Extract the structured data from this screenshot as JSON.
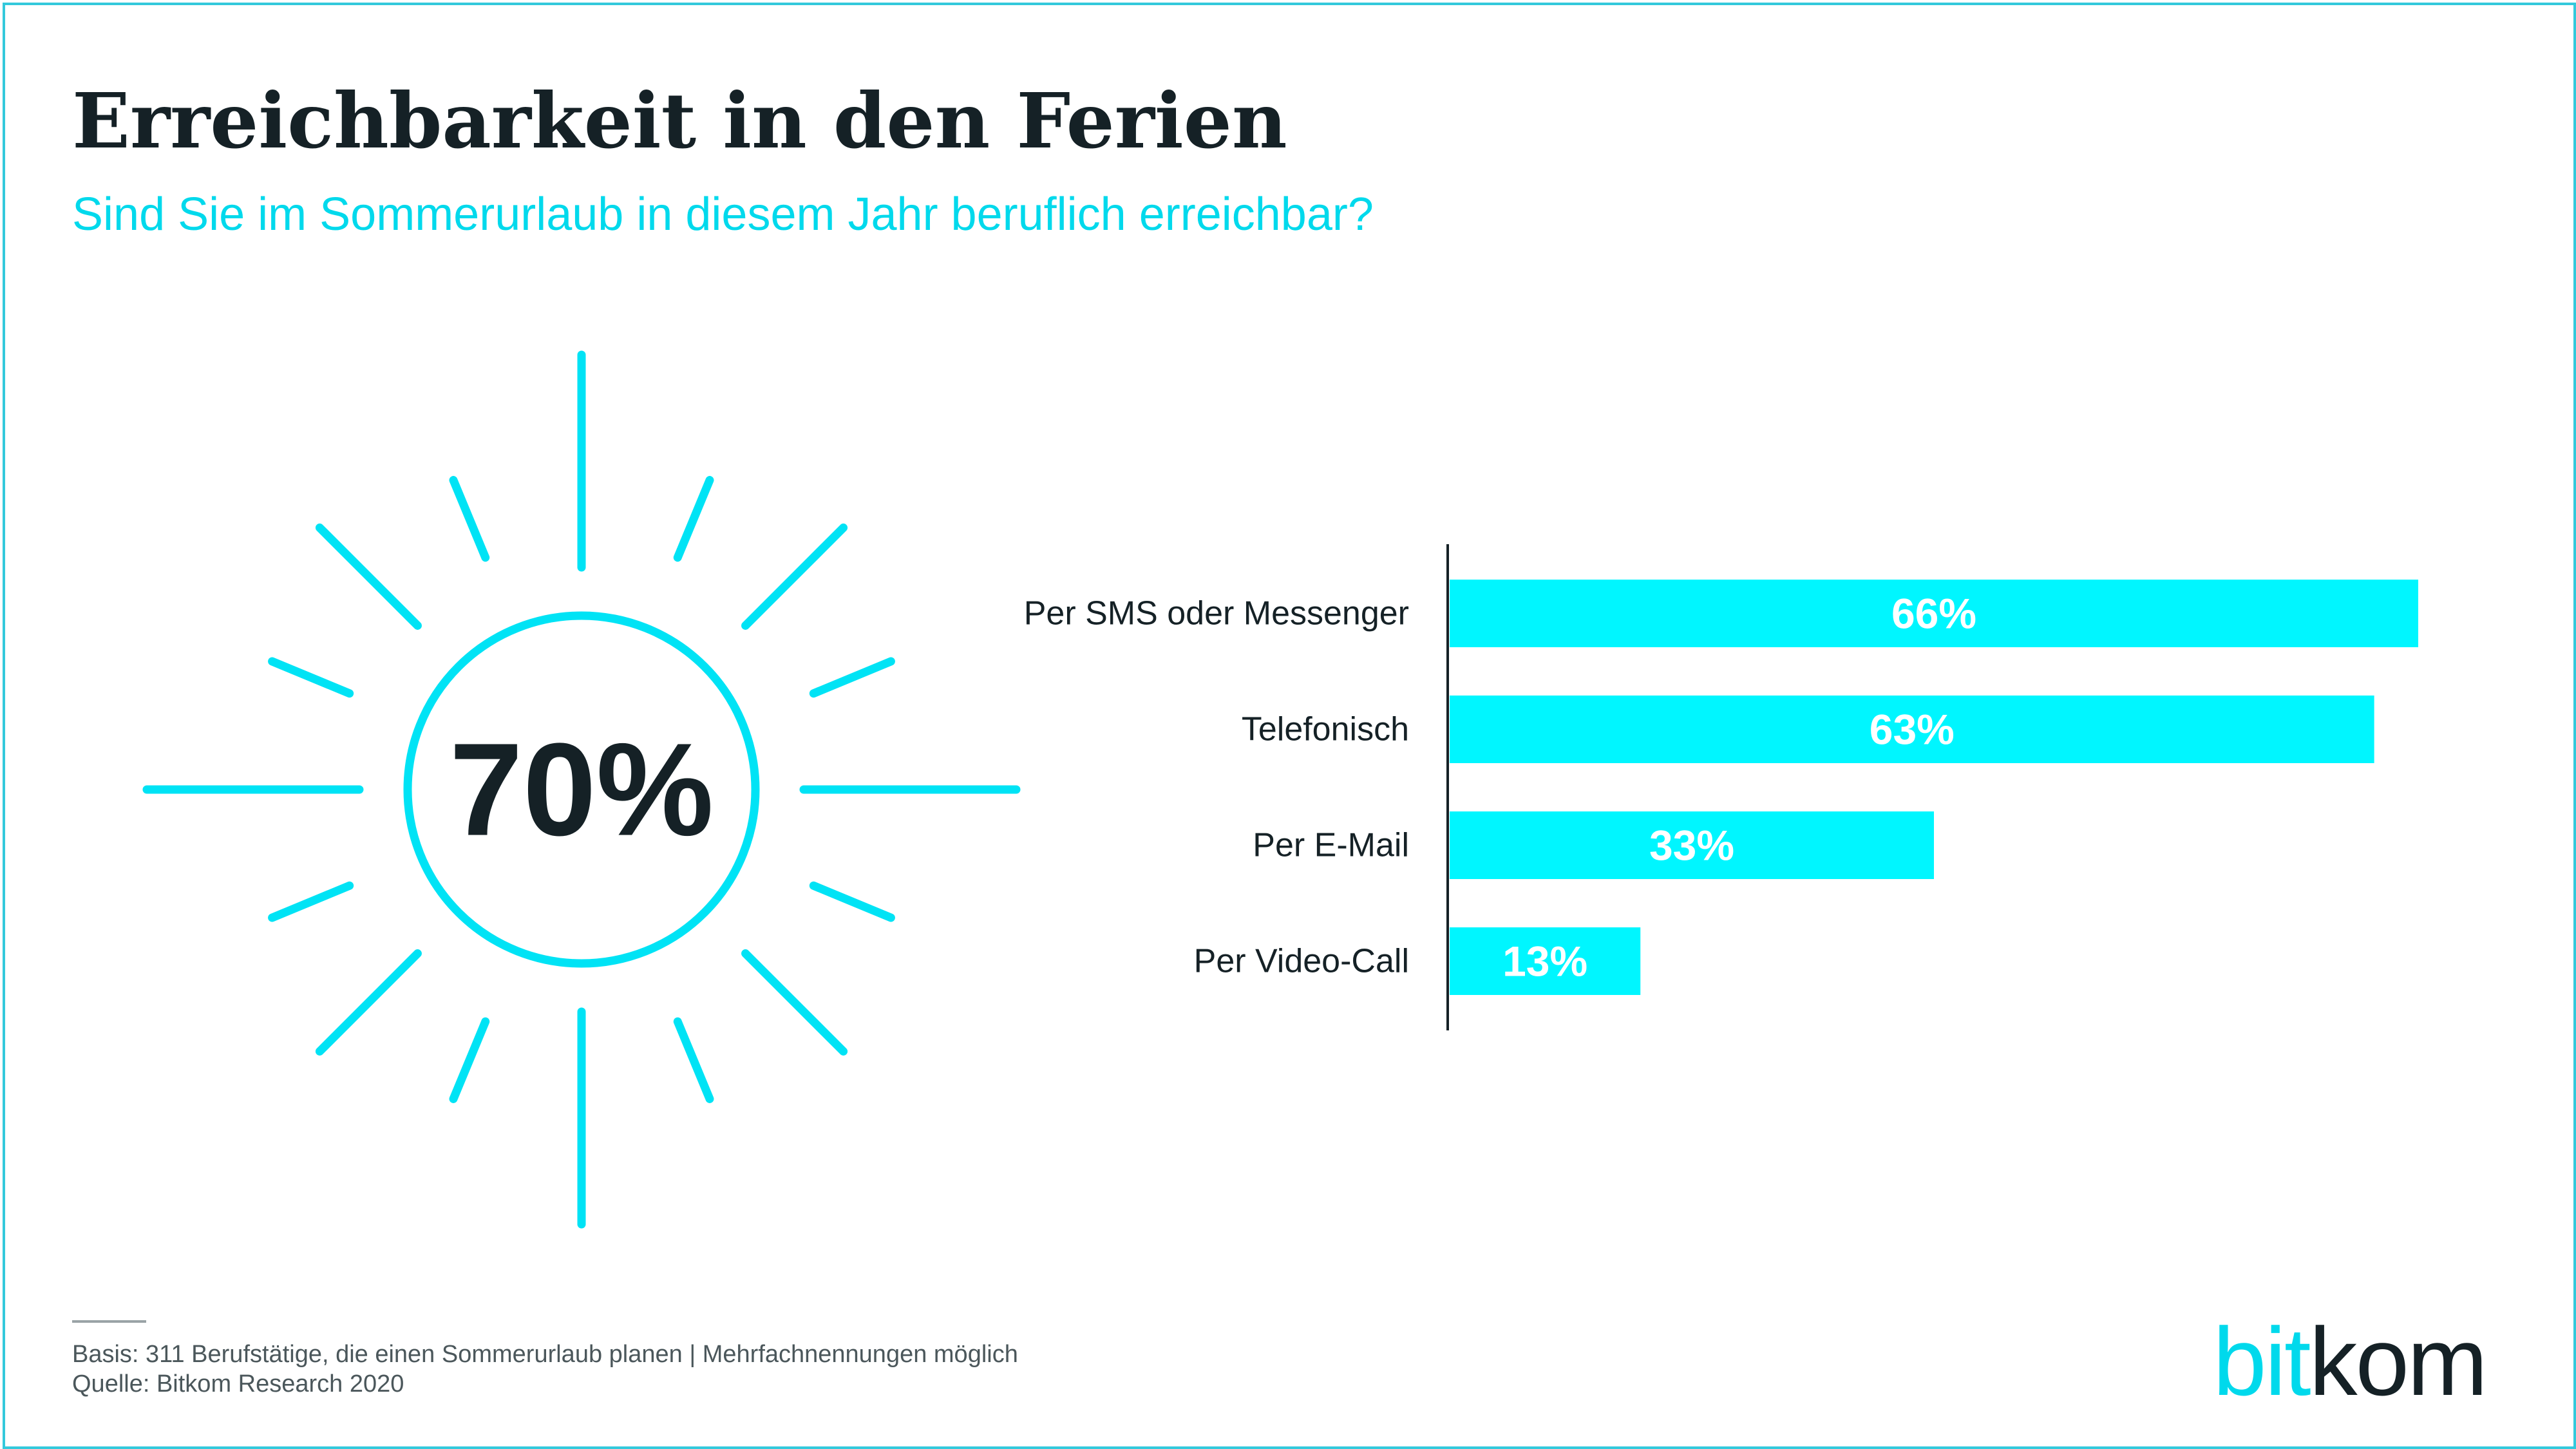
{
  "title": "Erreichbarkeit in den Ferien",
  "subtitle": "Sind Sie im Sommerurlaub in diesem Jahr beruflich erreichbar?",
  "highlight": {
    "value": "70%"
  },
  "chart_data": {
    "type": "bar",
    "orientation": "horizontal",
    "categories": [
      "Per SMS oder Messenger",
      "Telefonisch",
      "Per E-Mail",
      "Per Video-Call"
    ],
    "values": [
      66,
      63,
      33,
      13
    ],
    "data_labels": [
      "66%",
      "63%",
      "33%",
      "13%"
    ],
    "xlim": [
      0,
      66
    ],
    "grid": false,
    "legend": "none",
    "bar_color": "#00f6ff",
    "label_color": "#ffffff"
  },
  "colors": {
    "accent": "#00f6ff",
    "sun": "#00e3f5",
    "text": "#152126"
  },
  "footer": {
    "basis": "Basis: 311 Berufstätige, die einen Sommerurlaub planen | Mehrfachnennungen möglich",
    "source": "Quelle: Bitkom Research 2020"
  },
  "logo": {
    "part1": "bit",
    "part2": "kom"
  }
}
